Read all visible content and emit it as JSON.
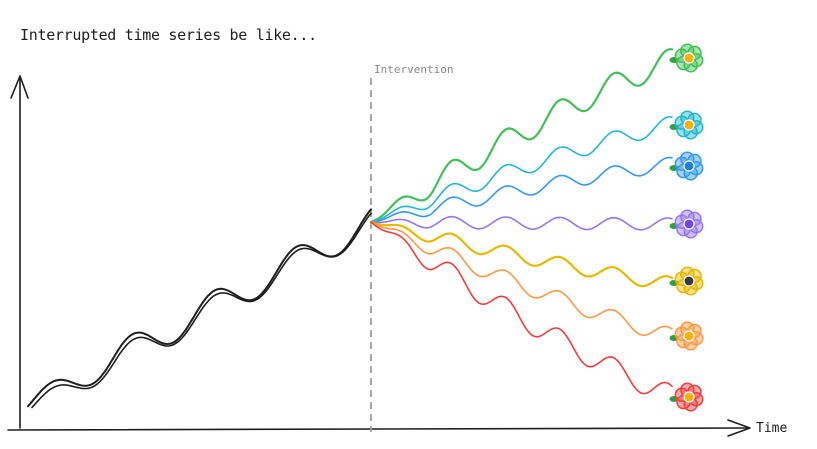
{
  "title": "Interrupted time series be like...",
  "intervention_label": "Intervention",
  "x_axis_label": "Time",
  "colors": {
    "pre_trend": "#1e1e1e",
    "axis": "#1e1e1e",
    "intervention_line": "#9e9e9e",
    "green": "#40c057",
    "cyan": "#22b8cf",
    "blue": "#339af0",
    "violet": "#9775fa",
    "yellow": "#e6b800",
    "orange": "#fd9843",
    "red": "#f03e3e"
  },
  "outcomes": [
    {
      "color": "green",
      "flower": "green-flower-icon",
      "center": "#fab005"
    },
    {
      "color": "cyan",
      "flower": "cyan-flower-icon",
      "center": "#fab005"
    },
    {
      "color": "blue",
      "flower": "blue-flower-icon",
      "center": "#1c7ed6"
    },
    {
      "color": "violet",
      "flower": "violet-flower-icon",
      "center": "#7048e8"
    },
    {
      "color": "yellow",
      "flower": "yellow-flower-icon",
      "center": "#343a40"
    },
    {
      "color": "orange",
      "flower": "orange-flower-icon",
      "center": "#fab005"
    },
    {
      "color": "red",
      "flower": "red-flower-icon",
      "center": "#fab005"
    }
  ]
}
